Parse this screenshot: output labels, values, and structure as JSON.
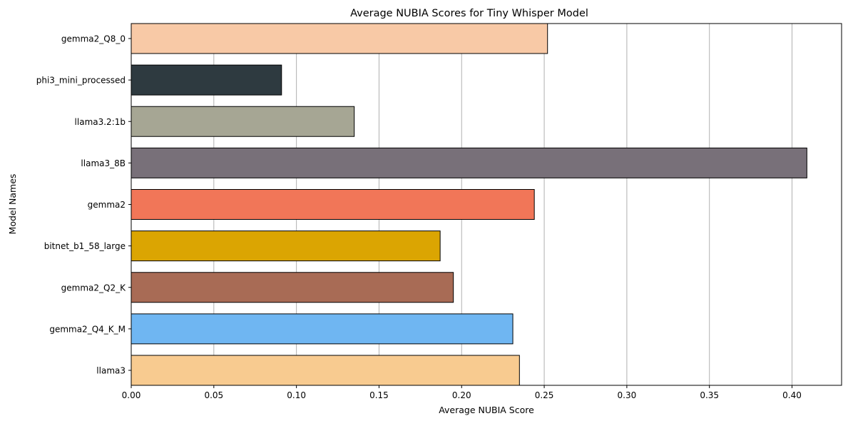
{
  "chart_data": {
    "type": "bar",
    "orientation": "horizontal",
    "title": "Average NUBIA Scores for Tiny Whisper Model",
    "xlabel": "Average NUBIA Score",
    "ylabel": "Model Names",
    "xlim": [
      0,
      0.43
    ],
    "xticks": [
      "0.00",
      "0.05",
      "0.10",
      "0.15",
      "0.20",
      "0.25",
      "0.30",
      "0.35",
      "0.40"
    ],
    "grid": "x",
    "categories": [
      "gemma2_Q8_0",
      "phi3_mini_processed",
      "llama3.2:1b",
      "llama3_8B",
      "gemma2",
      "bitnet_b1_58_large",
      "gemma2_Q2_K",
      "gemma2_Q4_K_M",
      "llama3"
    ],
    "values": [
      0.252,
      0.091,
      0.135,
      0.409,
      0.244,
      0.187,
      0.195,
      0.231,
      0.235
    ],
    "colors": [
      "#f8c9a6",
      "#2e3a40",
      "#a6a694",
      "#787079",
      "#f17658",
      "#dba502",
      "#a86b55",
      "#6fb6f2",
      "#f8cb90"
    ]
  }
}
